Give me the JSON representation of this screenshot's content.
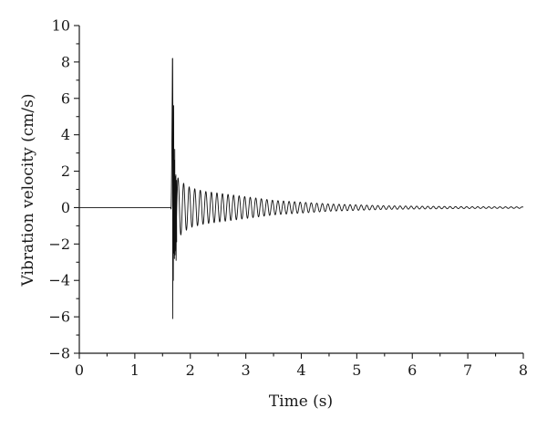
{
  "chart_data": {
    "type": "line",
    "title": "",
    "xlabel": "Time (s)",
    "ylabel": "Vibration velocity (cm/s)",
    "xlim": [
      0,
      8
    ],
    "ylim": [
      -8,
      10
    ],
    "x_ticks": [
      0,
      1,
      2,
      3,
      4,
      5,
      6,
      7,
      8
    ],
    "y_ticks": [
      -8,
      -6,
      -4,
      -2,
      0,
      2,
      4,
      6,
      8,
      10
    ],
    "x_minor_step": 0.5,
    "y_minor_step": 1,
    "grid": false,
    "legend": "none",
    "series": [
      {
        "color": "#111111",
        "x": [
          0.0,
          0.5,
          1.0,
          1.5,
          1.65,
          1.68,
          1.69,
          1.7,
          1.71,
          1.72,
          1.73,
          1.74,
          1.75,
          1.77,
          1.79,
          1.81,
          1.83,
          1.85,
          1.9,
          2.0,
          2.25,
          2.5,
          2.75,
          3.0,
          3.5,
          4.0,
          4.5,
          5.0,
          5.5,
          6.0,
          7.0,
          8.0
        ],
        "y_upper": [
          0.0,
          0.0,
          0.0,
          0.0,
          0.0,
          8.2,
          4.0,
          5.6,
          2.6,
          3.2,
          1.7,
          1.8,
          1.5,
          1.7,
          1.55,
          1.5,
          1.45,
          1.4,
          1.3,
          1.1,
          0.9,
          0.8,
          0.7,
          0.6,
          0.4,
          0.3,
          0.2,
          0.15,
          0.1,
          0.08,
          0.05,
          0.04
        ],
        "y_lower": [
          0.0,
          0.0,
          0.0,
          0.0,
          0.0,
          -6.1,
          -4.0,
          -2.5,
          -2.8,
          -2.6,
          -2.0,
          -2.9,
          -1.9,
          -1.8,
          -1.7,
          -1.6,
          -1.5,
          -1.4,
          -1.3,
          -1.1,
          -0.9,
          -0.8,
          -0.7,
          -0.6,
          -0.4,
          -0.3,
          -0.2,
          -0.15,
          -0.1,
          -0.08,
          -0.05,
          -0.04
        ],
        "oscillation_hz": 10
      }
    ]
  }
}
